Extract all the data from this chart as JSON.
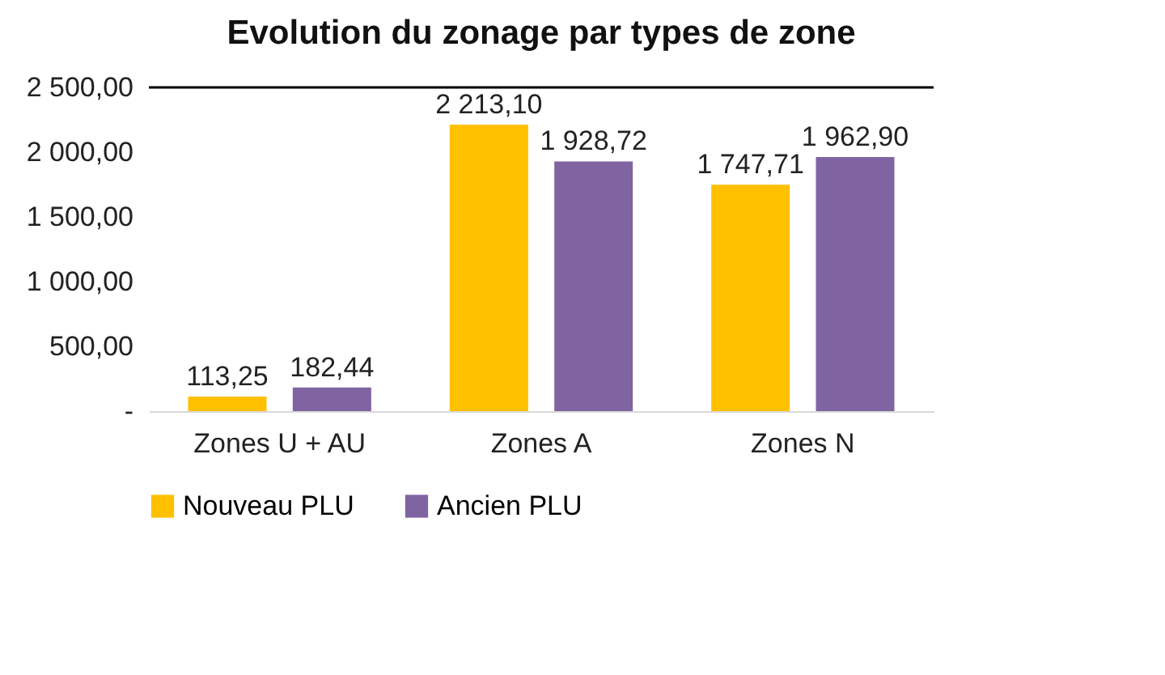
{
  "chart_data": {
    "type": "bar",
    "title": "Evolution du zonage par types de zone",
    "categories": [
      "Zones U + AU",
      "Zones A",
      "Zones N"
    ],
    "series": [
      {
        "name": "Nouveau PLU",
        "color": "#ffc000",
        "values": [
          113.25,
          2213.1,
          1747.71
        ],
        "value_labels": [
          "113,25",
          "2 213,10",
          "1 747,71"
        ]
      },
      {
        "name": "Ancien PLU",
        "color": "#8064a2",
        "values": [
          182.44,
          1928.72,
          1962.9
        ],
        "value_labels": [
          "182,44",
          "1 928,72",
          "1 962,90"
        ]
      }
    ],
    "ylim": [
      0,
      2500
    ],
    "yticks": [
      {
        "value": 0,
        "label": "-"
      },
      {
        "value": 500,
        "label": "500,00"
      },
      {
        "value": 1000,
        "label": "1 000,00"
      },
      {
        "value": 1500,
        "label": "1 500,00"
      },
      {
        "value": 2000,
        "label": "2 000,00"
      },
      {
        "value": 2500,
        "label": "2 500,00"
      }
    ],
    "ref_lines": [
      {
        "axis": "y",
        "value": 2500,
        "color": "#000000"
      }
    ],
    "grid": false,
    "legend": "bottom"
  }
}
